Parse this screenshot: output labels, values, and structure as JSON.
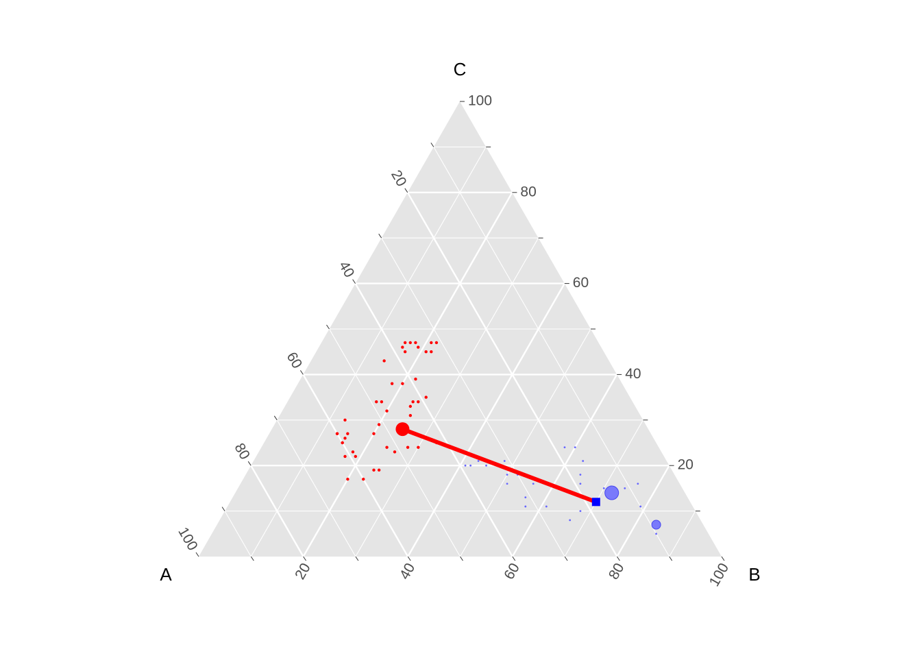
{
  "chart_data": {
    "type": "ternary-scatter",
    "axes": {
      "A": {
        "label": "A",
        "ticks": [
          "20",
          "40",
          "60",
          "80",
          "100"
        ]
      },
      "B": {
        "label": "B",
        "ticks": [
          "20",
          "40",
          "60",
          "80",
          "100"
        ]
      },
      "C": {
        "label": "C",
        "ticks": [
          "20",
          "40",
          "60",
          "80",
          "100"
        ]
      }
    },
    "grid": true,
    "colors": {
      "panel": "#e5e5e5",
      "grid": "#ffffff",
      "series1": "#ff0000",
      "series2": "#6666ff",
      "segment": "#ff0000"
    },
    "series": [
      {
        "color": "#ff0000",
        "points": [
          {
            "A": 38,
            "B": 17,
            "C": 45
          },
          {
            "A": 36,
            "B": 17,
            "C": 47
          },
          {
            "A": 37,
            "B": 16,
            "C": 47
          },
          {
            "A": 38,
            "B": 16,
            "C": 46
          },
          {
            "A": 35,
            "B": 18,
            "C": 47
          },
          {
            "A": 35,
            "B": 19,
            "C": 46
          },
          {
            "A": 34,
            "B": 21,
            "C": 45
          },
          {
            "A": 32,
            "B": 21,
            "C": 47
          },
          {
            "A": 31,
            "B": 22,
            "C": 47
          },
          {
            "A": 33,
            "B": 22,
            "C": 45
          },
          {
            "A": 39,
            "B": 22,
            "C": 39
          },
          {
            "A": 43,
            "B": 14,
            "C": 43
          },
          {
            "A": 42,
            "B": 20,
            "C": 38
          },
          {
            "A": 49,
            "B": 17,
            "C": 34
          },
          {
            "A": 44,
            "B": 18,
            "C": 38
          },
          {
            "A": 44,
            "B": 25,
            "C": 31
          },
          {
            "A": 43,
            "B": 24,
            "C": 33
          },
          {
            "A": 42,
            "B": 24,
            "C": 34
          },
          {
            "A": 41,
            "B": 25,
            "C": 34
          },
          {
            "A": 39,
            "B": 26,
            "C": 35
          },
          {
            "A": 48,
            "B": 18,
            "C": 34
          },
          {
            "A": 57,
            "B": 13,
            "C": 30
          },
          {
            "A": 48,
            "B": 20,
            "C": 32
          },
          {
            "A": 51,
            "B": 20,
            "C": 29
          },
          {
            "A": 60,
            "B": 13,
            "C": 27
          },
          {
            "A": 60,
            "B": 15,
            "C": 25
          },
          {
            "A": 48,
            "B": 28,
            "C": 24
          },
          {
            "A": 59,
            "B": 15,
            "C": 26
          },
          {
            "A": 53,
            "B": 20,
            "C": 27
          },
          {
            "A": 58,
            "B": 15,
            "C": 27
          },
          {
            "A": 60,
            "B": 13,
            "C": 27
          },
          {
            "A": 60,
            "B": 15,
            "C": 25
          },
          {
            "A": 59,
            "B": 18,
            "C": 23
          },
          {
            "A": 61,
            "B": 17,
            "C": 22
          },
          {
            "A": 59,
            "B": 19,
            "C": 22
          },
          {
            "A": 56,
            "B": 25,
            "C": 19
          },
          {
            "A": 52,
            "B": 24,
            "C": 24
          },
          {
            "A": 51,
            "B": 26,
            "C": 23
          },
          {
            "A": 57,
            "B": 24,
            "C": 19
          },
          {
            "A": 60,
            "B": 23,
            "C": 17
          },
          {
            "A": 63,
            "B": 20,
            "C": 17
          },
          {
            "A": 46,
            "B": 30,
            "C": 24
          },
          {
            "A": 42,
            "B": 33,
            "C": 25
          }
        ],
        "mean": {
          "A": 47,
          "B": 25,
          "C": 28
        }
      },
      {
        "color": "#6666ff",
        "points": [
          {
            "A": 16,
            "B": 63,
            "C": 21
          },
          {
            "A": 18,
            "B": 64,
            "C": 18
          },
          {
            "A": 15,
            "B": 70,
            "C": 15
          },
          {
            "A": 11,
            "B": 74,
            "C": 15
          },
          {
            "A": 8,
            "B": 76,
            "C": 16
          },
          {
            "A": 10,
            "B": 79,
            "C": 11
          },
          {
            "A": 10,
            "B": 85,
            "C": 5
          },
          {
            "A": 32,
            "B": 57,
            "C": 11
          },
          {
            "A": 28,
            "B": 61,
            "C": 11
          },
          {
            "A": 25,
            "B": 67,
            "C": 8
          },
          {
            "A": 16,
            "B": 60,
            "C": 24
          },
          {
            "A": 18,
            "B": 58,
            "C": 24
          },
          {
            "A": 38,
            "B": 42,
            "C": 20
          },
          {
            "A": 36,
            "B": 43,
            "C": 21
          },
          {
            "A": 35,
            "B": 45,
            "C": 20
          },
          {
            "A": 39,
            "B": 41,
            "C": 20
          },
          {
            "A": 31,
            "B": 48,
            "C": 21
          },
          {
            "A": 32,
            "B": 50,
            "C": 18
          },
          {
            "A": 30,
            "B": 52,
            "C": 18
          },
          {
            "A": 33,
            "B": 51,
            "C": 16
          },
          {
            "A": 28,
            "B": 56,
            "C": 16
          },
          {
            "A": 31,
            "B": 56,
            "C": 13
          },
          {
            "A": 22,
            "B": 68,
            "C": 10
          },
          {
            "A": 19,
            "B": 65,
            "C": 16
          }
        ],
        "mean": {
          "A": 18,
          "B": 70,
          "C": 12
        }
      }
    ],
    "large_points": [
      {
        "A": 14,
        "B": 72,
        "C": 14,
        "color": "#6666ff"
      },
      {
        "A": 9,
        "B": 84,
        "C": 7,
        "color": "#6666ff"
      }
    ],
    "segment": {
      "from": {
        "A": 47,
        "B": 25,
        "C": 28
      },
      "to": {
        "A": 18,
        "B": 70,
        "C": 12
      }
    }
  }
}
